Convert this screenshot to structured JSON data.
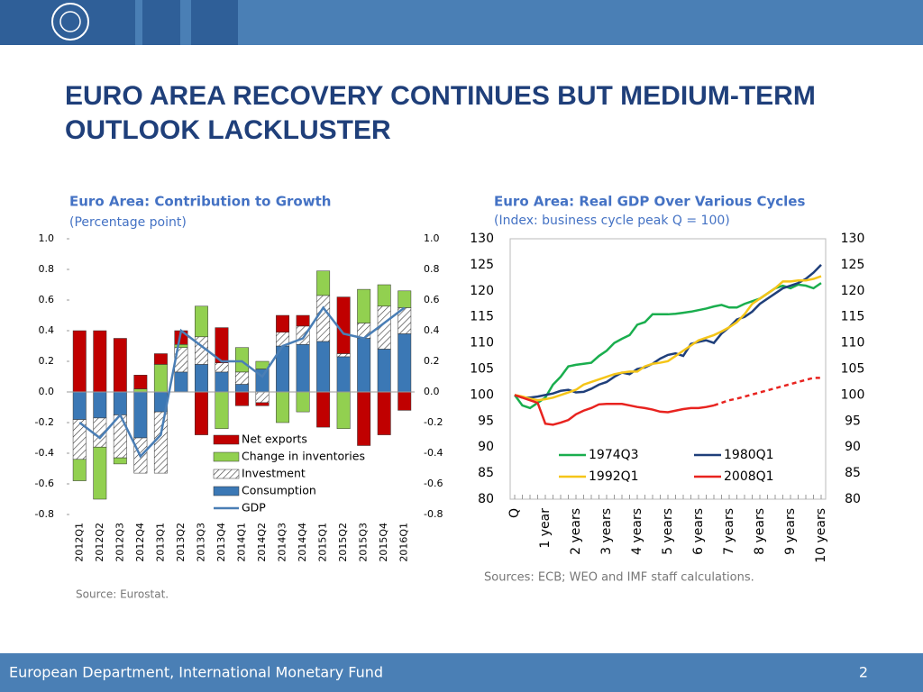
{
  "slide": {
    "title": "EURO AREA RECOVERY CONTINUES BUT MEDIUM-TERM OUTLOOK LACKLUSTER",
    "footer": "European Department, International Monetary Fund",
    "page_number": "2"
  },
  "chart_data": [
    {
      "type": "bar",
      "stacked": true,
      "title": "Euro Area: Contribution to Growth",
      "subtitle": "(Percentage point)",
      "source": "Source: Eurostat.",
      "categories": [
        "2012Q1",
        "2012Q2",
        "2012Q3",
        "2012Q4",
        "2013Q1",
        "2013Q2",
        "2013Q3",
        "2013Q4",
        "2014Q1",
        "2014Q2",
        "2014Q3",
        "2014Q4",
        "2015Q1",
        "2015Q2",
        "2015Q3",
        "2015Q4",
        "2016Q1"
      ],
      "series": [
        {
          "name": "Net exports",
          "color": "#c00000",
          "values": [
            0.4,
            0.4,
            0.35,
            0.09,
            0.07,
            0.09,
            -0.28,
            0.23,
            -0.09,
            -0.02,
            0.11,
            0.07,
            -0.23,
            0.37,
            -0.35,
            -0.28,
            -0.12
          ]
        },
        {
          "name": "Change in inventories",
          "color": "#92d050",
          "values": [
            -0.14,
            -0.34,
            -0.04,
            0.02,
            0.18,
            0.02,
            0.2,
            -0.24,
            0.16,
            0.05,
            -0.2,
            -0.13,
            0.16,
            -0.24,
            0.22,
            0.14,
            0.11
          ]
        },
        {
          "name": "Investment",
          "color": "#ffffff",
          "pattern": "hatch",
          "values": [
            -0.26,
            -0.19,
            -0.28,
            -0.23,
            -0.4,
            0.16,
            0.18,
            0.06,
            0.08,
            -0.07,
            0.09,
            0.12,
            0.3,
            0.02,
            0.1,
            0.28,
            0.17
          ]
        },
        {
          "name": "Consumption",
          "color": "#3b78b5",
          "values": [
            -0.18,
            -0.17,
            -0.15,
            -0.3,
            -0.13,
            0.13,
            0.18,
            0.13,
            0.05,
            0.15,
            0.3,
            0.31,
            0.33,
            0.23,
            0.35,
            0.28,
            0.38
          ]
        },
        {
          "name": "GDP",
          "type": "line",
          "color": "#4a7eb5",
          "values": [
            -0.2,
            -0.3,
            -0.15,
            -0.42,
            -0.28,
            0.4,
            0.3,
            0.2,
            0.2,
            0.1,
            0.3,
            0.35,
            0.55,
            0.38,
            0.35,
            0.45,
            0.55
          ]
        }
      ],
      "ylim": [
        -0.8,
        1.0
      ],
      "yticks": [
        {
          "value": 1,
          "label": "1.0"
        },
        0.8,
        0.6,
        0.4,
        0.2,
        {
          "value": 0,
          "label": "0.0"
        },
        -0.2,
        -0.4,
        -0.6,
        -0.8
      ],
      "y2lim": [
        -0.8,
        1.0
      ],
      "y2ticks": [
        {
          "value": 1,
          "label": "1.0"
        },
        0.8,
        0.6,
        0.4,
        0.2,
        {
          "value": 0,
          "label": "0.0"
        },
        -0.2,
        -0.4,
        -0.6,
        -0.8
      ]
    },
    {
      "type": "line",
      "title": "Euro Area: Real GDP Over Various Cycles",
      "subtitle": "(Index: business cycle peak Q = 100)",
      "source": "Sources: ECB; WEO and IMF staff calculations.",
      "x": [
        0,
        1,
        2,
        3,
        4,
        5,
        6,
        7,
        8,
        9,
        10,
        11,
        12,
        13,
        14,
        15,
        16,
        17,
        18,
        19,
        20,
        21,
        22,
        23,
        24,
        25,
        26,
        27,
        28,
        29,
        30,
        31,
        32,
        33,
        34,
        35,
        36,
        37,
        38,
        39,
        40
      ],
      "xlim": [
        0,
        40
      ],
      "xticks": [
        {
          "value": 0,
          "label": "Q"
        },
        {
          "value": 4,
          "label": "1 year"
        },
        {
          "value": 8,
          "label": "2 years"
        },
        {
          "value": 12,
          "label": "3 years"
        },
        {
          "value": 16,
          "label": "4 years"
        },
        {
          "value": 20,
          "label": "5 years"
        },
        {
          "value": 24,
          "label": "6 years"
        },
        {
          "value": 28,
          "label": "7 years"
        },
        {
          "value": 32,
          "label": "8 years"
        },
        {
          "value": 36,
          "label": "9 years"
        },
        {
          "value": 40,
          "label": "10 years"
        }
      ],
      "series": [
        {
          "name": "1974Q3",
          "color": "#1aae4e",
          "values": [
            100,
            98,
            97.5,
            98.5,
            99.5,
            102,
            103.5,
            105.5,
            105.8,
            106,
            106.2,
            107.5,
            108.5,
            110,
            110.8,
            111.5,
            113.5,
            114,
            115.5,
            115.5,
            115.5,
            115.6,
            115.8,
            116,
            116.3,
            116.6,
            117,
            117.3,
            116.8,
            116.8,
            117.5,
            118,
            118.5,
            119.5,
            120.5,
            121,
            120.5,
            121.2,
            121,
            120.5,
            121.5
          ]
        },
        {
          "name": "1980Q1",
          "color": "#1f3f7a",
          "values": [
            100,
            99.5,
            99.5,
            99.7,
            100,
            100.3,
            100.8,
            101,
            100.5,
            100.6,
            101.2,
            102,
            102.5,
            103.5,
            104.3,
            104,
            105,
            105.3,
            106,
            107,
            107.7,
            108,
            107.5,
            109.8,
            110.2,
            110.5,
            110,
            111.8,
            113,
            114.5,
            115,
            116,
            117.5,
            118.5,
            119.5,
            120.5,
            121,
            121.5,
            122.3,
            123.5,
            125
          ]
        },
        {
          "name": "1992Q1",
          "color": "#f5c518",
          "values": [
            100,
            99.7,
            99.3,
            99,
            99.2,
            99.5,
            100,
            100.5,
            101,
            102,
            102.5,
            103,
            103.5,
            104,
            104.3,
            104.5,
            104.5,
            105.5,
            106,
            106.2,
            106.5,
            107.5,
            108.5,
            109.5,
            110.5,
            111,
            111.5,
            112.2,
            113,
            114,
            115.5,
            117.5,
            118.5,
            119.5,
            120.5,
            121.8,
            121.8,
            122,
            122,
            122.3,
            122.8
          ]
        },
        {
          "name": "2008Q1",
          "color": "#e8231f",
          "dashed_from": 26,
          "values": [
            100,
            99.5,
            99,
            98.5,
            94.5,
            94.3,
            94.7,
            95.2,
            96.3,
            97,
            97.5,
            98.2,
            98.3,
            98.3,
            98.3,
            98,
            97.7,
            97.5,
            97.2,
            96.8,
            96.7,
            97,
            97.3,
            97.5,
            97.5,
            97.7,
            98,
            98.5,
            99,
            99.3,
            99.7,
            100.1,
            100.5,
            100.9,
            101.3,
            101.7,
            102.1,
            102.5,
            102.9,
            103.3,
            103.3
          ]
        }
      ],
      "ylim": [
        80,
        130
      ],
      "yticks": [
        130,
        125,
        120,
        115,
        110,
        105,
        100,
        95,
        90,
        85,
        80
      ],
      "y2lim": [
        80,
        130
      ],
      "y2ticks": [
        130,
        125,
        120,
        115,
        110,
        105,
        100,
        95,
        90,
        85,
        80
      ]
    }
  ]
}
